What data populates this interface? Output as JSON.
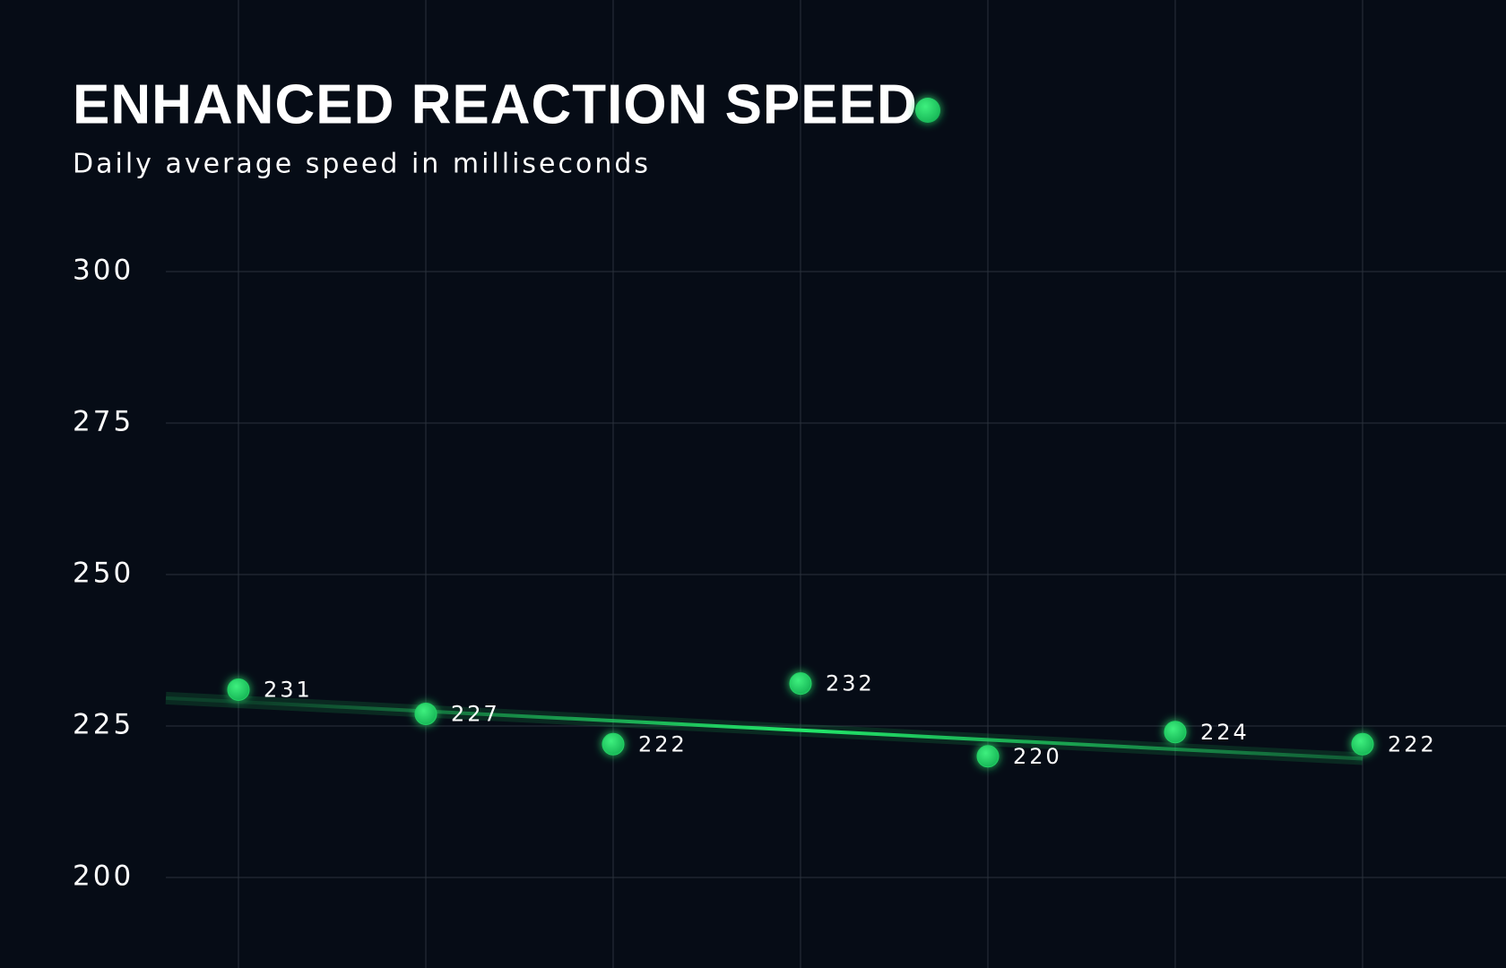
{
  "chart_data": {
    "type": "scatter",
    "title": "ENHANCED REACTION SPEED",
    "subtitle": "Daily average speed in milliseconds",
    "categories": [
      null,
      null,
      null,
      null,
      null,
      null,
      null
    ],
    "values": [
      231,
      227,
      222,
      232,
      220,
      224,
      222
    ],
    "color": "#22d364",
    "trend": {
      "values": [
        229,
        219.6
      ]
    },
    "ylim": [
      200,
      300
    ],
    "yticks": [
      200,
      225,
      250,
      275,
      300
    ],
    "grid": true
  }
}
